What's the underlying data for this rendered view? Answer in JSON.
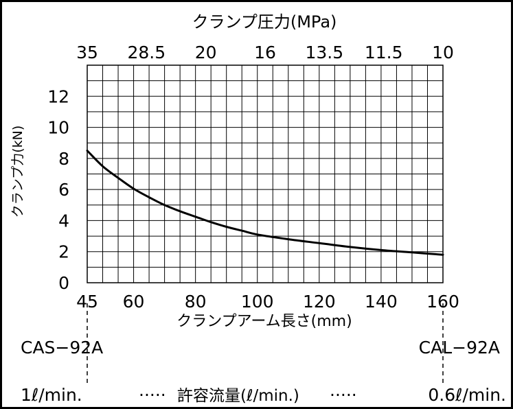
{
  "chart_data": {
    "type": "line",
    "title_top": "クランプ圧力(MPa)",
    "top_axis_ticks": [
      "35",
      "28.5",
      "20",
      "16",
      "13.5",
      "11.5",
      "10"
    ],
    "xlabel": "クランプアーム長さ(mm)",
    "ylabel": "クランプ力(kN)",
    "x_tick_labels": [
      "45",
      "60",
      "80",
      "100",
      "120",
      "140",
      "160"
    ],
    "x_tick_values": [
      45,
      60,
      80,
      100,
      120,
      140,
      160
    ],
    "y_tick_labels": [
      "0",
      "2",
      "4",
      "6",
      "8",
      "10",
      "12"
    ],
    "y_tick_values": [
      0,
      2,
      4,
      6,
      8,
      10,
      12
    ],
    "xlim": [
      45,
      160
    ],
    "ylim": [
      0,
      14
    ],
    "grid": true,
    "series": [
      {
        "x": [
          45,
          50,
          55,
          60,
          65,
          70,
          75,
          80,
          85,
          90,
          95,
          100,
          110,
          120,
          130,
          140,
          150,
          160
        ],
        "y": [
          8.5,
          7.5,
          6.75,
          6.05,
          5.5,
          5.0,
          4.6,
          4.25,
          3.9,
          3.6,
          3.35,
          3.1,
          2.8,
          2.55,
          2.3,
          2.1,
          1.95,
          1.8
        ]
      }
    ]
  },
  "annotations": {
    "model_left": "CAS−92A",
    "model_right": "CAL−92A",
    "flow_left": "1ℓ/min.",
    "flow_dots_left": "·····",
    "flow_label": "許容流量(ℓ/min.)",
    "flow_dots_right": "·····",
    "flow_right": "0.6ℓ/min."
  }
}
